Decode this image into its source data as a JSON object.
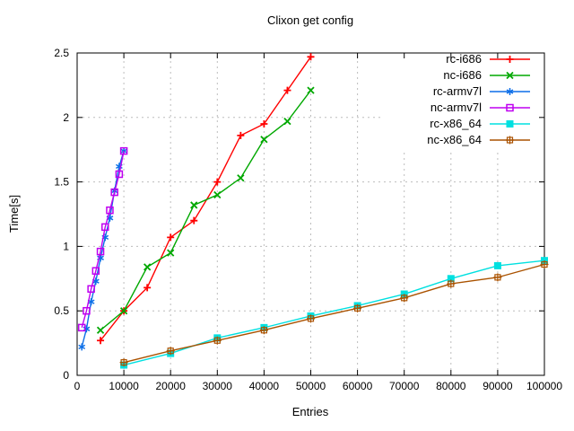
{
  "title": "Clixon get config",
  "chart_data": {
    "type": "line",
    "title": "Clixon get config",
    "xlabel": "Entries",
    "ylabel": "Time[s]",
    "xlim": [
      0,
      100000
    ],
    "ylim": [
      0,
      2.5
    ],
    "xticks": [
      0,
      10000,
      20000,
      30000,
      40000,
      50000,
      60000,
      70000,
      80000,
      90000,
      100000
    ],
    "xtick_labels": [
      "0",
      "10000",
      "20000",
      "30000",
      "40000",
      "50000",
      "60000",
      "70000",
      "80000",
      "90000",
      "100000"
    ],
    "yticks": [
      0,
      0.5,
      1,
      1.5,
      2,
      2.5
    ],
    "ytick_labels": [
      "0",
      "0.5",
      "1",
      "1.5",
      "2",
      "2.5"
    ],
    "grid": true,
    "grid_color": "#bdbdbd",
    "axis_color": "#000000",
    "legend_position": "top-right-inside",
    "series": [
      {
        "name": "rc-i686",
        "color": "#ff0000",
        "marker": "plus",
        "x": [
          5000,
          10000,
          15000,
          20000,
          25000,
          30000,
          35000,
          40000,
          45000,
          50000
        ],
        "y": [
          0.27,
          0.5,
          0.68,
          1.07,
          1.2,
          1.5,
          1.86,
          1.95,
          2.21,
          2.47
        ]
      },
      {
        "name": "nc-i686",
        "color": "#00a800",
        "marker": "cross",
        "x": [
          5000,
          10000,
          15000,
          20000,
          25000,
          30000,
          35000,
          40000,
          45000,
          50000
        ],
        "y": [
          0.35,
          0.5,
          0.84,
          0.95,
          1.32,
          1.4,
          1.53,
          1.83,
          1.97,
          2.21
        ]
      },
      {
        "name": "rc-armv7l",
        "color": "#0d6fe8",
        "marker": "asterisk",
        "x": [
          1000,
          2000,
          3000,
          4000,
          5000,
          6000,
          7000,
          8000,
          9000,
          10000
        ],
        "y": [
          0.22,
          0.36,
          0.57,
          0.73,
          0.91,
          1.07,
          1.22,
          1.43,
          1.62,
          1.74
        ]
      },
      {
        "name": "nc-armv7l",
        "color": "#bf00f0",
        "marker": "open-square",
        "x": [
          1000,
          2000,
          3000,
          4000,
          5000,
          6000,
          7000,
          8000,
          9000,
          10000
        ],
        "y": [
          0.37,
          0.5,
          0.67,
          0.81,
          0.96,
          1.15,
          1.28,
          1.42,
          1.56,
          1.74
        ]
      },
      {
        "name": "rc-x86_64",
        "color": "#00e0e0",
        "marker": "filled-square",
        "x": [
          10000,
          20000,
          30000,
          40000,
          50000,
          60000,
          70000,
          80000,
          90000,
          100000
        ],
        "y": [
          0.08,
          0.17,
          0.29,
          0.37,
          0.46,
          0.54,
          0.63,
          0.75,
          0.85,
          0.89
        ]
      },
      {
        "name": "nc-x86_64",
        "color": "#aa5200",
        "marker": "square-plus",
        "x": [
          10000,
          20000,
          30000,
          40000,
          50000,
          60000,
          70000,
          80000,
          90000,
          100000
        ],
        "y": [
          0.1,
          0.19,
          0.27,
          0.35,
          0.44,
          0.52,
          0.6,
          0.71,
          0.76,
          0.86
        ]
      }
    ]
  }
}
